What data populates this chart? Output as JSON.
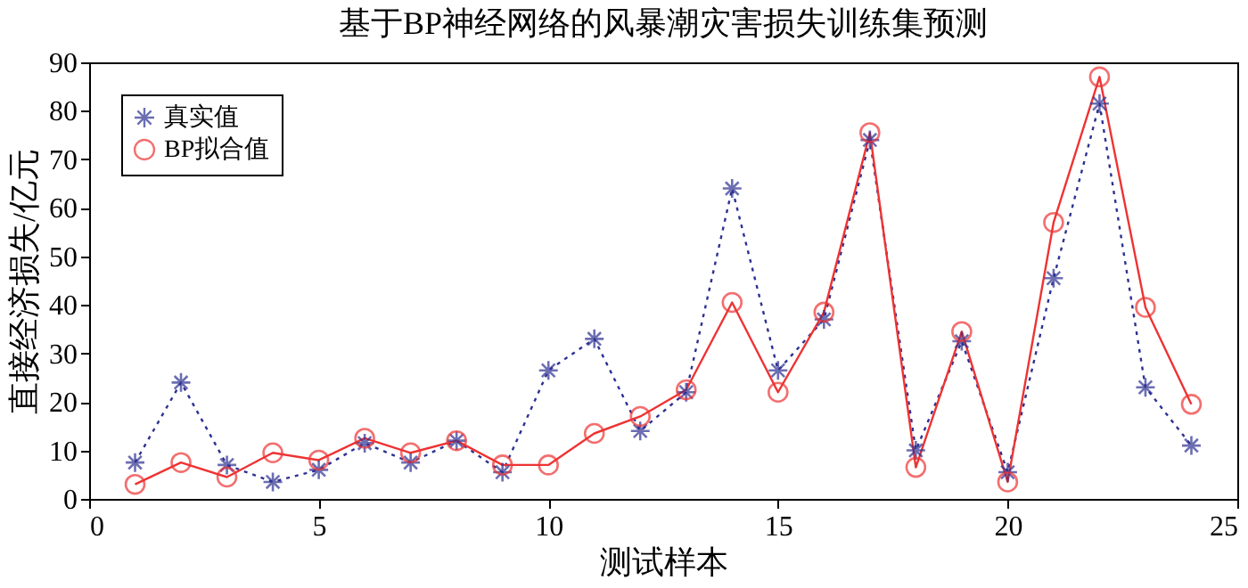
{
  "chart_data": {
    "type": "line",
    "title": "基于BP神经网络的风暴潮灾害损失训练集预测",
    "xlabel": "测试样本",
    "ylabel": "直接经济损失/亿元",
    "x": [
      1,
      2,
      3,
      4,
      5,
      6,
      7,
      8,
      9,
      10,
      11,
      12,
      13,
      14,
      15,
      16,
      17,
      18,
      19,
      20,
      21,
      22,
      23,
      24
    ],
    "series": [
      {
        "name": "真实值",
        "color": "#2e3192",
        "marker": "cross",
        "line_style": "dotted",
        "values": [
          7.5,
          24,
          7,
          3.5,
          6,
          11.5,
          7.5,
          12,
          5.5,
          26.5,
          33,
          14,
          22,
          64,
          26.5,
          37,
          74,
          10,
          32.5,
          5.5,
          45.5,
          81.5,
          23,
          11
        ]
      },
      {
        "name": "BP拟合值",
        "color": "#ee3333",
        "marker": "circle",
        "line_style": "solid",
        "values": [
          3,
          7.5,
          4.5,
          9.5,
          8,
          12.5,
          9.5,
          12,
          7,
          7,
          13.5,
          17,
          22.5,
          40.5,
          22,
          38.5,
          75.5,
          6.5,
          34.5,
          3.5,
          57,
          87,
          39.5,
          19.5
        ]
      }
    ],
    "xlim": [
      0,
      25
    ],
    "xticks": [
      0,
      5,
      10,
      15,
      20,
      25
    ],
    "ylim": [
      0,
      90
    ],
    "yticks": [
      0,
      10,
      20,
      30,
      40,
      50,
      60,
      70,
      80,
      90
    ],
    "grid": false,
    "legend": "top left"
  }
}
